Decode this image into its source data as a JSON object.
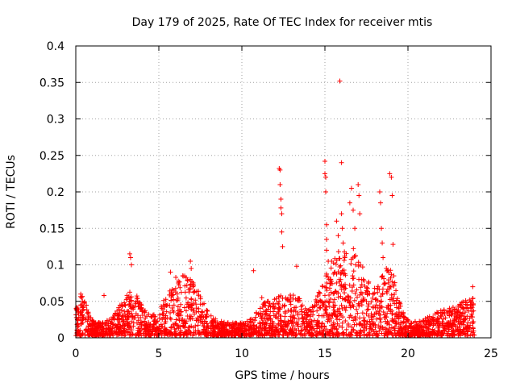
{
  "chart_data": {
    "type": "scatter",
    "title": "Day 179 of 2025, Rate Of TEC Index for receiver mtis",
    "xlabel": "GPS time / hours",
    "ylabel": "ROTI / TECUs",
    "xlim": [
      0,
      25
    ],
    "ylim": [
      0,
      0.4
    ],
    "xticks": [
      0,
      5,
      10,
      15,
      20,
      25
    ],
    "yticks": [
      0,
      0.05,
      0.1,
      0.15,
      0.2,
      0.25,
      0.3,
      0.35,
      0.4
    ],
    "xtick_labels": [
      "0",
      "5",
      "10",
      "15",
      "20",
      "25"
    ],
    "ytick_labels": [
      "0",
      "0.05",
      "0.1",
      "0.15",
      "0.2",
      "0.25",
      "0.3",
      "0.35",
      "0.4"
    ],
    "grid": true,
    "marker": "+",
    "color": "#ff0000",
    "series": [
      {
        "name": "ROTI",
        "x": [
          0.3,
          0.35,
          0.4,
          1.7,
          3.25,
          3.3,
          3.35,
          5.7,
          6.9,
          6.95,
          10.7,
          11.2,
          12.25,
          12.3,
          12.3,
          12.35,
          12.35,
          12.4,
          12.4,
          12.45,
          13.3,
          14.85,
          15.0,
          15.0,
          15.05,
          15.05,
          15.1,
          15.1,
          15.1,
          15.2,
          15.4,
          15.6,
          15.7,
          15.8,
          15.9,
          16.0,
          16.0,
          16.05,
          16.1,
          16.2,
          16.5,
          16.6,
          16.7,
          16.8,
          16.85,
          17.0,
          17.05,
          17.1,
          17.2,
          18.3,
          18.35,
          18.4,
          18.45,
          18.5,
          18.6,
          18.7,
          18.9,
          19.0,
          19.05,
          19.1,
          19.15,
          23.9
        ],
        "y": [
          0.06,
          0.055,
          0.05,
          0.058,
          0.115,
          0.11,
          0.1,
          0.09,
          0.105,
          0.095,
          0.092,
          0.055,
          0.232,
          0.23,
          0.21,
          0.19,
          0.178,
          0.17,
          0.145,
          0.125,
          0.098,
          0.045,
          0.242,
          0.225,
          0.22,
          0.2,
          0.155,
          0.135,
          0.12,
          0.105,
          0.105,
          0.09,
          0.16,
          0.14,
          0.352,
          0.24,
          0.17,
          0.15,
          0.13,
          0.11,
          0.185,
          0.205,
          0.175,
          0.15,
          0.1,
          0.21,
          0.195,
          0.17,
          0.08,
          0.2,
          0.185,
          0.15,
          0.13,
          0.11,
          0.075,
          0.095,
          0.225,
          0.22,
          0.195,
          0.128,
          0.085,
          0.07
        ]
      }
    ]
  }
}
